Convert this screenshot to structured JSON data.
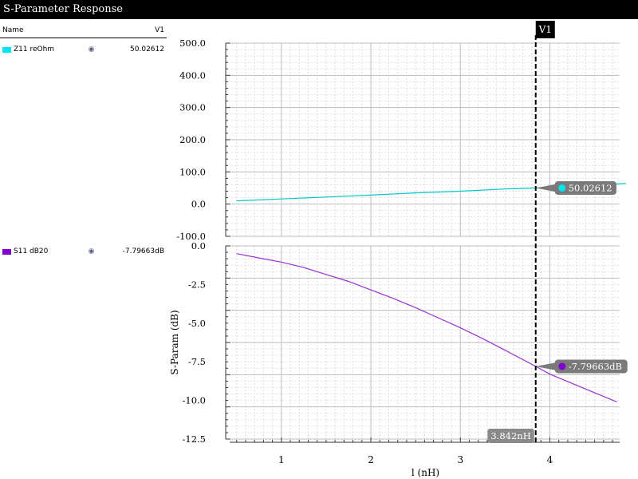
{
  "window": {
    "title": "S-Parameter Response"
  },
  "legend": {
    "header": {
      "name_label": "Name",
      "value_label": "V1"
    },
    "rows": [
      {
        "name": "Z11 reOhm",
        "value": "50.02612",
        "color": "#00e5ee",
        "icon": "eye-icon"
      },
      {
        "name": "S11 dB20",
        "value": "-7.79663dB",
        "color": "#8000cc",
        "icon": "eye-icon"
      }
    ]
  },
  "chart_data": [
    {
      "type": "line",
      "title": "",
      "xlabel": "",
      "ylabel": "",
      "xlim": [
        0.44,
        4.78
      ],
      "ylim": [
        -100,
        500
      ],
      "yticks": [
        "500.0",
        "400.0",
        "300.0",
        "200.0",
        "100.0",
        "0.0",
        "-100.0"
      ],
      "grid": true,
      "series": [
        {
          "name": "Z11 reOhm",
          "color": "#00c8cc",
          "x": [
            0.5,
            1.0,
            1.5,
            2.0,
            2.5,
            3.0,
            3.5,
            3.842,
            4.2,
            4.85
          ],
          "y": [
            10,
            16,
            22,
            28,
            35,
            40,
            47,
            50.02612,
            55,
            64
          ]
        }
      ],
      "marker": {
        "series": "Z11 reOhm",
        "x": 3.842,
        "y": 50.02612,
        "label": "50.02612",
        "color": "#00e5ee"
      }
    },
    {
      "type": "line",
      "title": "",
      "xlabel": "l (nH)",
      "ylabel": "S-Param (dB)",
      "xlim": [
        0.44,
        4.78
      ],
      "ylim": [
        -12.5,
        0.0
      ],
      "xticks": [
        "1",
        "2",
        "3",
        "4"
      ],
      "yticks": [
        "0.0",
        "-2.5",
        "-5.0",
        "-7.5",
        "-10.0",
        "-12.5"
      ],
      "grid": true,
      "series": [
        {
          "name": "S11 dB20",
          "color": "#9a2fd6",
          "x": [
            0.5,
            0.75,
            1.0,
            1.25,
            1.5,
            1.75,
            2.0,
            2.25,
            2.5,
            2.75,
            3.0,
            3.25,
            3.5,
            3.842,
            4.0,
            4.25,
            4.5,
            4.75
          ],
          "y": [
            -0.5,
            -0.78,
            -1.05,
            -1.4,
            -1.85,
            -2.3,
            -2.85,
            -3.4,
            -4.0,
            -4.65,
            -5.3,
            -6.0,
            -6.75,
            -7.79663,
            -8.3,
            -8.9,
            -9.5,
            -10.1
          ]
        }
      ],
      "marker": {
        "series": "S11 dB20",
        "x": 3.842,
        "y": -7.79663,
        "label": "-7.79663dB",
        "color": "#8000cc"
      }
    }
  ],
  "cursor": {
    "name": "V1",
    "x": 3.842,
    "label": "3.842nH"
  }
}
